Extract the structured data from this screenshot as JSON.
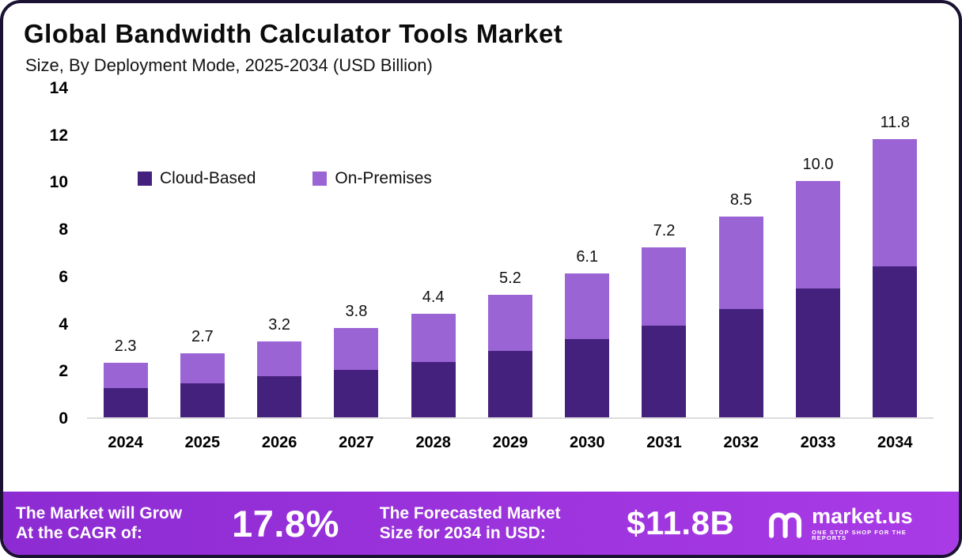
{
  "header": {
    "title": "Global Bandwidth Calculator Tools Market",
    "subtitle": "Size, By Deployment Mode, 2025-2034 (USD Billion)"
  },
  "chart_data": {
    "type": "bar",
    "stacked": true,
    "title": "Global Bandwidth Calculator Tools Market",
    "subtitle": "Size, By Deployment Mode, 2025-2034 (USD Billion)",
    "categories": [
      "2024",
      "2025",
      "2026",
      "2027",
      "2028",
      "2029",
      "2030",
      "2031",
      "2032",
      "2033",
      "2034"
    ],
    "series": [
      {
        "name": "Cloud-Based",
        "color": "#45217e",
        "values": [
          1.25,
          1.45,
          1.75,
          2.0,
          2.35,
          2.8,
          3.3,
          3.9,
          4.6,
          5.45,
          6.4
        ]
      },
      {
        "name": "On-Premises",
        "color": "#9b64d4",
        "values": [
          1.05,
          1.25,
          1.45,
          1.8,
          2.05,
          2.4,
          2.8,
          3.3,
          3.9,
          4.55,
          5.4
        ]
      }
    ],
    "totals": [
      2.3,
      2.7,
      3.2,
      3.8,
      4.4,
      5.2,
      6.1,
      7.2,
      8.5,
      10.0,
      11.8
    ],
    "total_labels": [
      "2.3",
      "2.7",
      "3.2",
      "3.8",
      "4.4",
      "5.2",
      "6.1",
      "7.2",
      "8.5",
      "10.0",
      "11.8"
    ],
    "ylim": [
      0,
      14
    ],
    "yticks": [
      0,
      2,
      4,
      6,
      8,
      10,
      12,
      14
    ],
    "grid": false,
    "legend_position": "inside-upper-left"
  },
  "footer": {
    "cagr_label_line1": "The Market will Grow",
    "cagr_label_line2": "At the CAGR of:",
    "cagr_value": "17.8%",
    "forecast_label_line1": "The Forecasted Market",
    "forecast_label_line2": "Size for 2034 in USD:",
    "forecast_value": "$11.8B",
    "brand": "market.us",
    "brand_tagline": "ONE STOP SHOP FOR THE REPORTS"
  },
  "colors": {
    "cloud_based": "#45217e",
    "on_premises": "#9b64d4",
    "footer_gradient_start": "#8d2bd2",
    "footer_gradient_end": "#a93be6",
    "frame_border": "#1b1133"
  }
}
